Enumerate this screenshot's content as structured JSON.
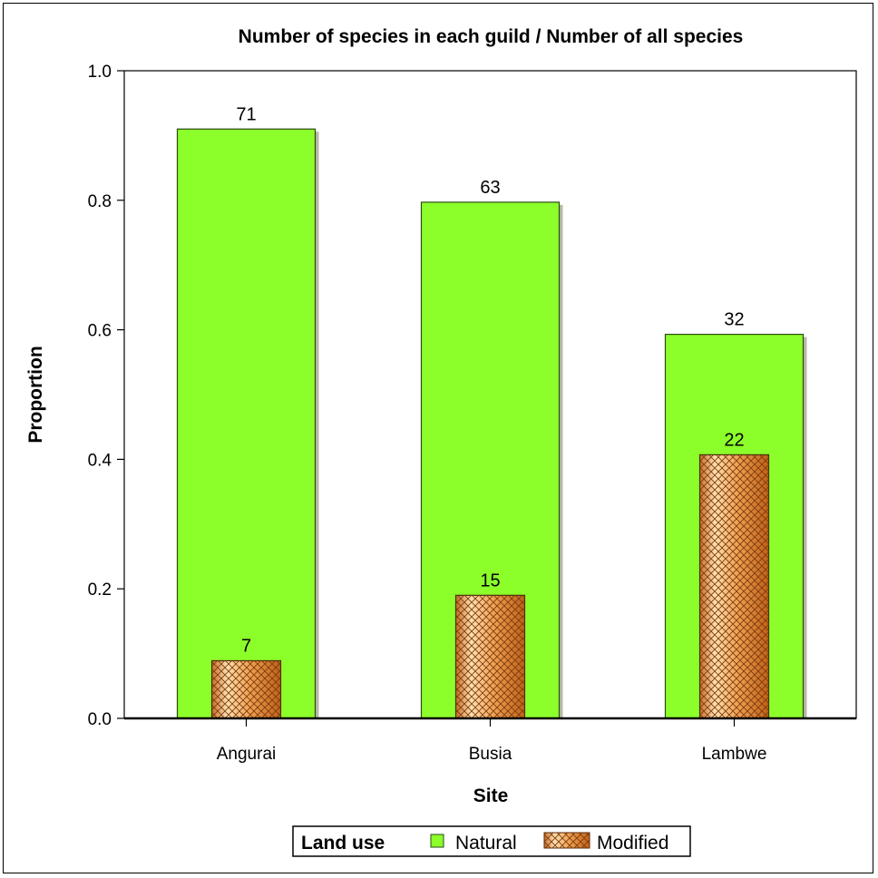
{
  "chart_data": {
    "type": "bar",
    "title": "Number of species in each guild / Number of all species",
    "xlabel": "Site",
    "ylabel": "Proportion",
    "categories": [
      "Angurai",
      "Busia",
      "Lambwe"
    ],
    "ylim": [
      0,
      1.0
    ],
    "yticks": [
      "0.0",
      "0.2",
      "0.4",
      "0.6",
      "0.8",
      "1.0"
    ],
    "series": [
      {
        "name": "Natural",
        "values": [
          0.91,
          0.797,
          0.593
        ],
        "labels": [
          "71",
          "63",
          "32"
        ],
        "color": "#8cff2a"
      },
      {
        "name": "Modified",
        "values": [
          0.089,
          0.19,
          0.407
        ],
        "labels": [
          "7",
          "15",
          "22"
        ],
        "color": "#f0a050"
      }
    ],
    "legend": {
      "title": "Land use",
      "position": "bottom"
    },
    "grid": false
  }
}
